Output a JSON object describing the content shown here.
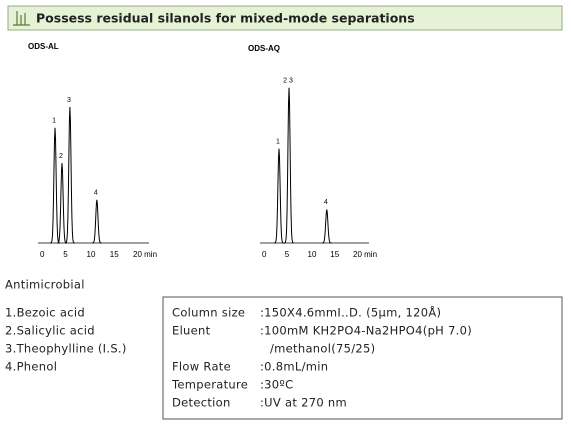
{
  "header": {
    "title": "Possess residual silanols for mixed-mode separations"
  },
  "chromatograms": [
    {
      "title": "ODS-AL",
      "xlim": [
        0,
        20
      ],
      "xticks": [
        0,
        5,
        10,
        15,
        {
          "value": 20,
          "label": "20 min"
        }
      ],
      "peaks": [
        {
          "label": "1",
          "time": 2.8,
          "height": 72
        },
        {
          "label": "2",
          "time": 4.3,
          "height": 50
        },
        {
          "label": "3",
          "time": 6.0,
          "height": 85
        },
        {
          "label": "4",
          "time": 11.8,
          "height": 27
        }
      ]
    },
    {
      "title": "ODS-AQ",
      "xlim": [
        0,
        20
      ],
      "xticks": [
        0,
        5,
        10,
        15,
        {
          "value": 20,
          "label": "20 min"
        }
      ],
      "peaks": [
        {
          "label": "1",
          "time": 3.3,
          "height": 59
        },
        {
          "label": "2 3",
          "time": 5.5,
          "height": 97
        },
        {
          "label": "4",
          "time": 13.8,
          "height": 21
        }
      ]
    }
  ],
  "sample": {
    "title": "Antimicrobial",
    "compounds": [
      "1.Bezoic acid",
      "2.Salicylic acid",
      "3.Theophylline (I.S.)",
      "4.Phenol"
    ]
  },
  "conditions": [
    {
      "label": "Column size",
      "lines": [
        ":150X4.6mmI..D. (5μm, 120Å)"
      ]
    },
    {
      "label": "Eluent",
      "lines": [
        ":100mM KH2PO4-Na2HPO4(pH 7.0)",
        "/methanol(75/25)"
      ]
    },
    {
      "label": "Flow Rate",
      "lines": [
        ":0.8mL/min"
      ]
    },
    {
      "label": "Temperature",
      "lines": [
        ":30ºC"
      ]
    },
    {
      "label": "Detection",
      "lines": [
        ":UV at 270 nm"
      ]
    }
  ]
}
